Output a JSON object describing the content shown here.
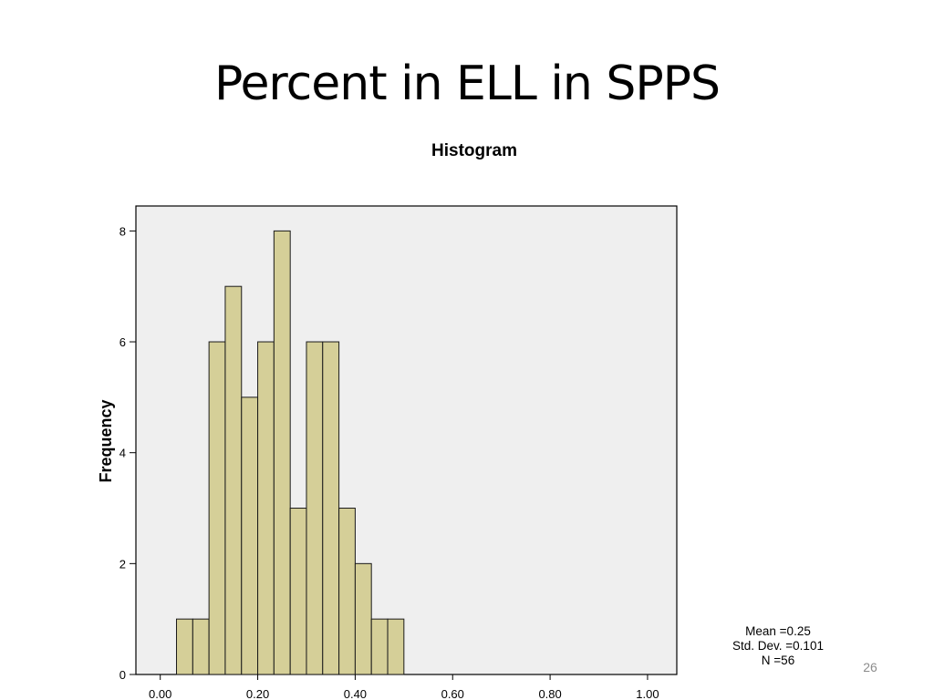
{
  "slide": {
    "title": "Percent in ELL in SPPS",
    "number": "26"
  },
  "stats": {
    "mean": "Mean =0.25",
    "std_dev": "Std. Dev. =0.101",
    "n": "N =56"
  },
  "colors": {
    "bar_fill": "#d5cf98",
    "bar_stroke": "#1a1a1a",
    "plot_background": "#efefef"
  },
  "chart_data": {
    "type": "bar",
    "title": "Histogram",
    "xlabel": "",
    "ylabel": "Frequency",
    "bin_width": 0.0333,
    "bins": [
      {
        "start": 0.0333,
        "end": 0.0667,
        "count": 1
      },
      {
        "start": 0.0667,
        "end": 0.1,
        "count": 1
      },
      {
        "start": 0.1,
        "end": 0.1333,
        "count": 6
      },
      {
        "start": 0.1333,
        "end": 0.1667,
        "count": 7
      },
      {
        "start": 0.1667,
        "end": 0.2,
        "count": 5
      },
      {
        "start": 0.2,
        "end": 0.2333,
        "count": 6
      },
      {
        "start": 0.2333,
        "end": 0.2667,
        "count": 8
      },
      {
        "start": 0.2667,
        "end": 0.3,
        "count": 3
      },
      {
        "start": 0.3,
        "end": 0.3333,
        "count": 6
      },
      {
        "start": 0.3333,
        "end": 0.3667,
        "count": 6
      },
      {
        "start": 0.3667,
        "end": 0.4,
        "count": 3
      },
      {
        "start": 0.4,
        "end": 0.4333,
        "count": 2
      },
      {
        "start": 0.4333,
        "end": 0.4667,
        "count": 1
      },
      {
        "start": 0.4667,
        "end": 0.5,
        "count": 1
      }
    ],
    "xlim": [
      -0.05,
      1.06
    ],
    "ylim": [
      0,
      8.45
    ],
    "x_ticks": [
      0,
      0.2,
      0.4,
      0.6,
      0.8,
      1.0
    ],
    "x_tick_labels": [
      "0.00",
      "0.20",
      "0.40",
      "0.60",
      "0.80",
      "1.00"
    ],
    "y_ticks": [
      0,
      2,
      4,
      6,
      8
    ],
    "y_tick_labels": [
      "0",
      "2",
      "4",
      "6",
      "8"
    ],
    "grid": false,
    "legend": "none"
  }
}
